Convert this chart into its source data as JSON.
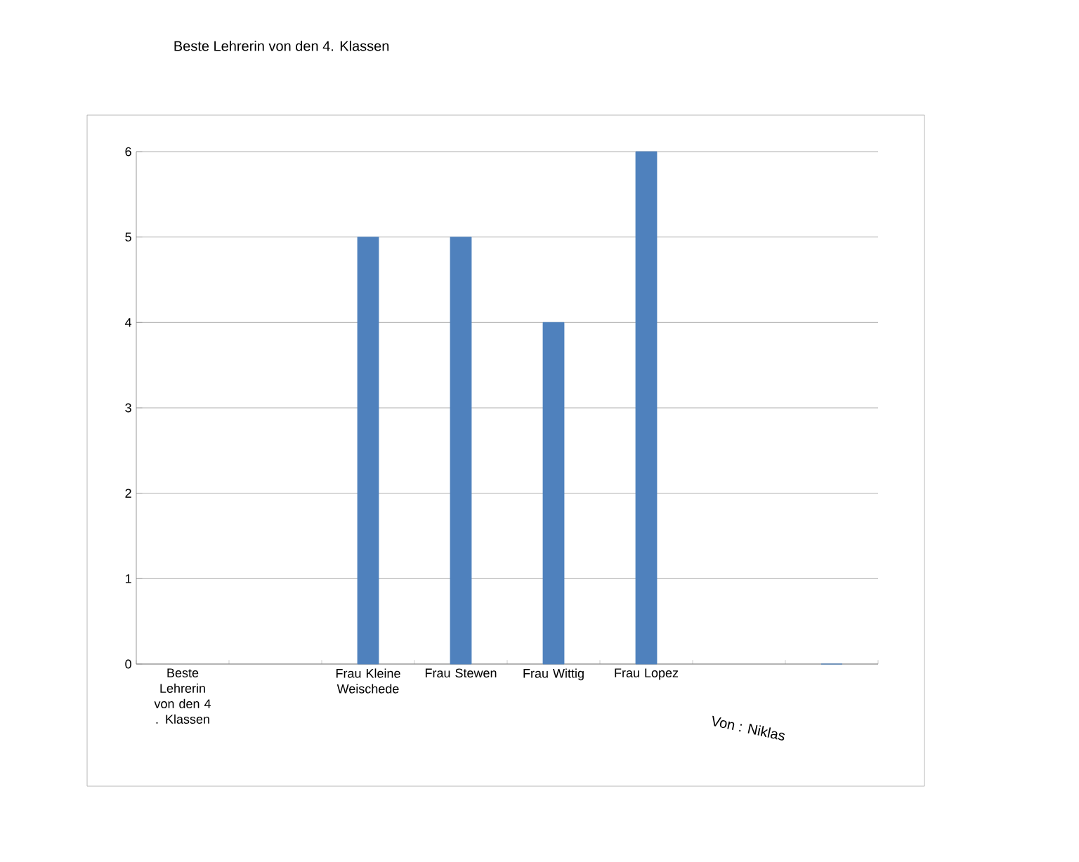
{
  "chart_data": {
    "type": "bar",
    "title": "Beste Lehrerin von den 4. Klassen",
    "categories": [
      "Beste Lehrerin von den 4 . Klassen",
      null,
      "Frau Kleine Weischede",
      "Frau Stewen",
      "Frau Wittig",
      "Frau Lopez",
      null,
      null
    ],
    "values": [
      null,
      null,
      5,
      5,
      4,
      6,
      null,
      0
    ],
    "color": "#4f81bd",
    "ylim": [
      0,
      6
    ],
    "yticks": [
      0,
      1,
      2,
      3,
      4,
      5,
      6
    ],
    "grid": "y",
    "annotations": [
      "Von : Niklas"
    ]
  }
}
